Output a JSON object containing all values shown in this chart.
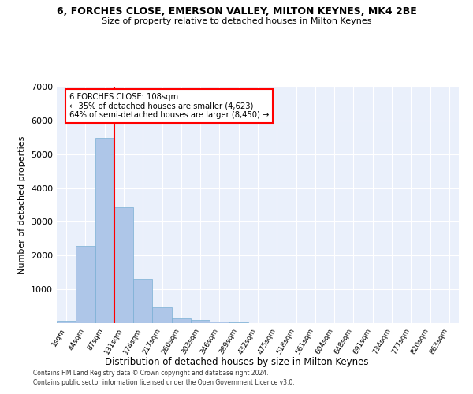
{
  "title1": "6, FORCHES CLOSE, EMERSON VALLEY, MILTON KEYNES, MK4 2BE",
  "title2": "Size of property relative to detached houses in Milton Keynes",
  "xlabel": "Distribution of detached houses by size in Milton Keynes",
  "ylabel": "Number of detached properties",
  "categories": [
    "1sqm",
    "44sqm",
    "87sqm",
    "131sqm",
    "174sqm",
    "217sqm",
    "260sqm",
    "303sqm",
    "346sqm",
    "389sqm",
    "432sqm",
    "475sqm",
    "518sqm",
    "561sqm",
    "604sqm",
    "648sqm",
    "691sqm",
    "734sqm",
    "777sqm",
    "820sqm",
    "863sqm"
  ],
  "bar_heights": [
    75,
    2280,
    5480,
    3440,
    1310,
    470,
    150,
    90,
    50,
    30,
    10,
    0,
    0,
    0,
    0,
    0,
    0,
    0,
    0,
    0,
    0
  ],
  "bar_color": "#aec6e8",
  "bar_edge_color": "#7aafd4",
  "vline_x": 2.5,
  "vline_color": "red",
  "annotation_text": "6 FORCHES CLOSE: 108sqm\n← 35% of detached houses are smaller (4,623)\n64% of semi-detached houses are larger (8,450) →",
  "annotation_box_color": "white",
  "annotation_box_edge_color": "red",
  "ylim": [
    0,
    7000
  ],
  "yticks": [
    0,
    1000,
    2000,
    3000,
    4000,
    5000,
    6000,
    7000
  ],
  "bg_color": "#eaf0fb",
  "grid_color": "white",
  "footer1": "Contains HM Land Registry data © Crown copyright and database right 2024.",
  "footer2": "Contains public sector information licensed under the Open Government Licence v3.0."
}
